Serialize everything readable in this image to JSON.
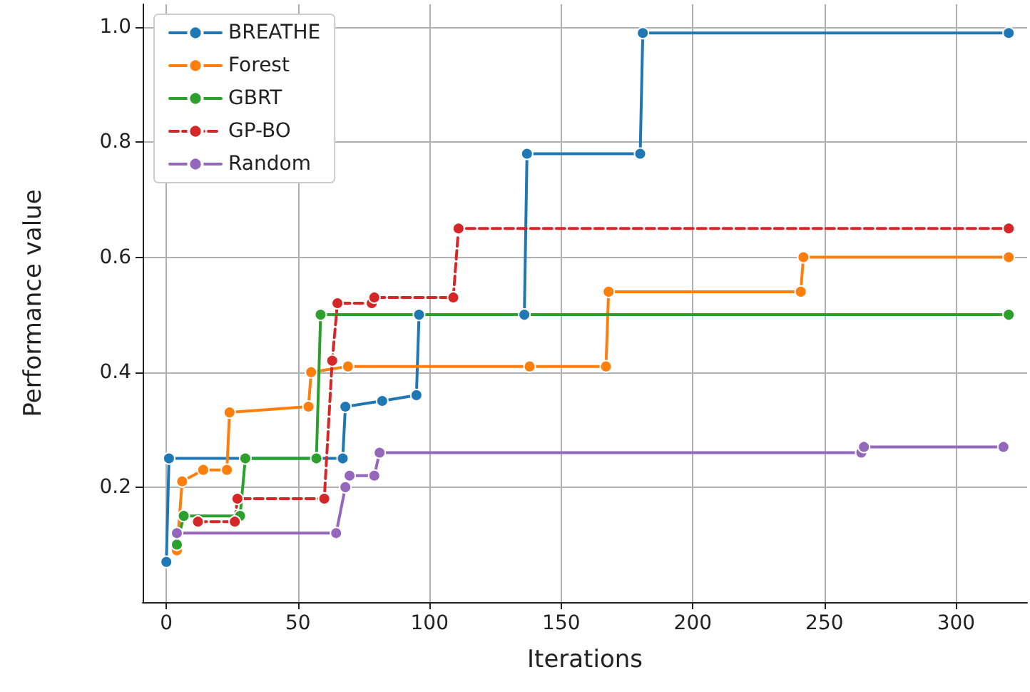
{
  "chart_data": {
    "type": "line",
    "xlabel": "Iterations",
    "ylabel": "Performance value",
    "xlim": [
      -9,
      327
    ],
    "ylim": [
      0,
      1.04
    ],
    "xticks": [
      0,
      50,
      100,
      150,
      200,
      250,
      300
    ],
    "yticks": [
      0.2,
      0.4,
      0.6,
      0.8,
      {
        "value": 1,
        "label": "1.0"
      }
    ],
    "grid": true,
    "legend": "top left",
    "marker": "circle",
    "line_style": "solid",
    "series": [
      {
        "name": "BREATHE",
        "color": "#1f77b4",
        "x": [
          0,
          1,
          67,
          68,
          82,
          95,
          96,
          136,
          137,
          180,
          181,
          320
        ],
        "values": [
          0.07,
          0.25,
          0.25,
          0.34,
          0.35,
          0.36,
          0.5,
          0.5,
          0.78,
          0.78,
          0.99,
          0.99
        ]
      },
      {
        "name": "Forest",
        "color": "#ff7f0e",
        "x": [
          4,
          6,
          14,
          23,
          24,
          54,
          55,
          69,
          138,
          167,
          168,
          241,
          242,
          320
        ],
        "values": [
          0.09,
          0.21,
          0.23,
          0.23,
          0.33,
          0.34,
          0.4,
          0.41,
          0.41,
          0.41,
          0.54,
          0.54,
          0.6,
          0.6
        ]
      },
      {
        "name": "GBRT",
        "color": "#2ca02c",
        "x": [
          4,
          6.6,
          28,
          30,
          57,
          58.6,
          320
        ],
        "values": [
          0.1,
          0.15,
          0.15,
          0.25,
          0.25,
          0.5,
          0.5
        ]
      },
      {
        "name": "GP-BO",
        "color": "#d62728",
        "line_style": "dashed",
        "x": [
          12,
          26,
          27,
          60,
          63,
          65,
          78,
          79,
          109,
          111,
          320
        ],
        "values": [
          0.14,
          0.14,
          0.18,
          0.18,
          0.42,
          0.52,
          0.52,
          0.53,
          0.53,
          0.65,
          0.65
        ]
      },
      {
        "name": "Random",
        "color": "#9467bd",
        "x": [
          4,
          64.5,
          68,
          69.6,
          79,
          81,
          264,
          265,
          318
        ],
        "values": [
          0.12,
          0.12,
          0.2,
          0.22,
          0.22,
          0.26,
          0.26,
          0.27,
          0.27
        ]
      }
    ]
  }
}
